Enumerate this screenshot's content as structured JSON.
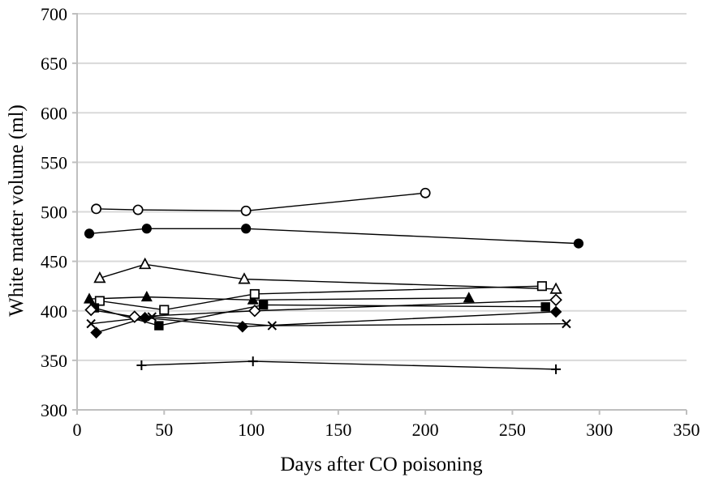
{
  "chart_data": {
    "type": "line",
    "title": "",
    "xlabel": "Days after CO poisoning",
    "ylabel": "White matter volume (ml)",
    "xlim": [
      0,
      350
    ],
    "ylim": [
      300,
      700
    ],
    "xticks": [
      0,
      50,
      100,
      150,
      200,
      250,
      300,
      350
    ],
    "yticks": [
      300,
      350,
      400,
      450,
      500,
      550,
      600,
      650,
      700
    ],
    "grid": "horizontal",
    "legend": "none",
    "colors": {
      "series": "#000000",
      "gridline": "#d9d9d9",
      "axis": "#bfbfbf",
      "text": "#000000",
      "open_marker_fill": "#ffffff"
    },
    "series": [
      {
        "name": "circle-open",
        "marker": "circle",
        "fill": "open",
        "points": [
          [
            11,
            503
          ],
          [
            35,
            502
          ],
          [
            97,
            501
          ],
          [
            200,
            519
          ]
        ]
      },
      {
        "name": "circle-filled",
        "marker": "circle",
        "fill": "filled",
        "points": [
          [
            7,
            478
          ],
          [
            40,
            483
          ],
          [
            97,
            483
          ],
          [
            288,
            468
          ]
        ]
      },
      {
        "name": "triangle-open",
        "marker": "triangle",
        "fill": "open",
        "points": [
          [
            13,
            433
          ],
          [
            39,
            447
          ],
          [
            96,
            432
          ],
          [
            275,
            422
          ]
        ]
      },
      {
        "name": "triangle-filled",
        "marker": "triangle",
        "fill": "filled",
        "points": [
          [
            7,
            412
          ],
          [
            40,
            414
          ],
          [
            101,
            411
          ],
          [
            225,
            413
          ]
        ]
      },
      {
        "name": "square-open",
        "marker": "square",
        "fill": "open",
        "points": [
          [
            13,
            410
          ],
          [
            50,
            401
          ],
          [
            102,
            417
          ],
          [
            267,
            425
          ]
        ]
      },
      {
        "name": "square-filled",
        "marker": "square",
        "fill": "filled",
        "points": [
          [
            10,
            403
          ],
          [
            47,
            385
          ],
          [
            107,
            406
          ],
          [
            269,
            404
          ]
        ]
      },
      {
        "name": "diamond-open",
        "marker": "diamond",
        "fill": "open",
        "points": [
          [
            8,
            401
          ],
          [
            33,
            394
          ],
          [
            102,
            400
          ],
          [
            275,
            411
          ]
        ]
      },
      {
        "name": "diamond-filled",
        "marker": "diamond",
        "fill": "filled",
        "points": [
          [
            11,
            378
          ],
          [
            39,
            393
          ],
          [
            95,
            384
          ],
          [
            275,
            399
          ]
        ]
      },
      {
        "name": "x-mark",
        "marker": "x",
        "fill": "line",
        "points": [
          [
            8,
            387
          ],
          [
            43,
            394
          ],
          [
            112,
            385
          ],
          [
            281,
            387
          ]
        ]
      },
      {
        "name": "plus-mark",
        "marker": "plus",
        "fill": "line",
        "points": [
          [
            37,
            345
          ],
          [
            101,
            349
          ],
          [
            275,
            341
          ]
        ]
      }
    ]
  }
}
